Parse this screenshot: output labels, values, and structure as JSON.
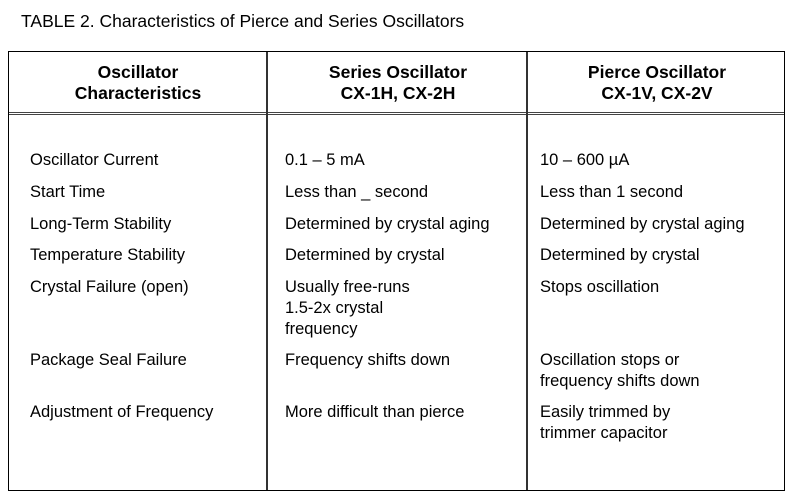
{
  "title": "TABLE 2. Characteristics of Pierce and Series Oscillators",
  "headers": [
    "Oscillator\nCharacteristics",
    "Series Oscillator\nCX-1H, CX-2H",
    "Pierce Oscillator\nCX-1V, CX-2V"
  ],
  "rows": [
    [
      "Oscillator Current",
      "0.1 – 5 mA",
      "10 – 600 µA"
    ],
    [
      "Start Time",
      "Less than _ second",
      "Less than 1 second"
    ],
    [
      "Long-Term Stability",
      "Determined by crystal aging",
      "Determined by crystal aging"
    ],
    [
      "Temperature Stability",
      "Determined by crystal",
      "Determined by crystal"
    ],
    [
      "Crystal Failure (open)",
      "Usually free-runs\n1.5-2x crystal\nfrequency",
      "Stops oscillation"
    ],
    [
      "Package Seal Failure",
      "Frequency shifts down",
      "Oscillation stops or\nfrequency shifts down"
    ],
    [
      "Adjustment of Frequency",
      "More difficult than pierce",
      "Easily trimmed by\ntrimmer capacitor"
    ]
  ]
}
